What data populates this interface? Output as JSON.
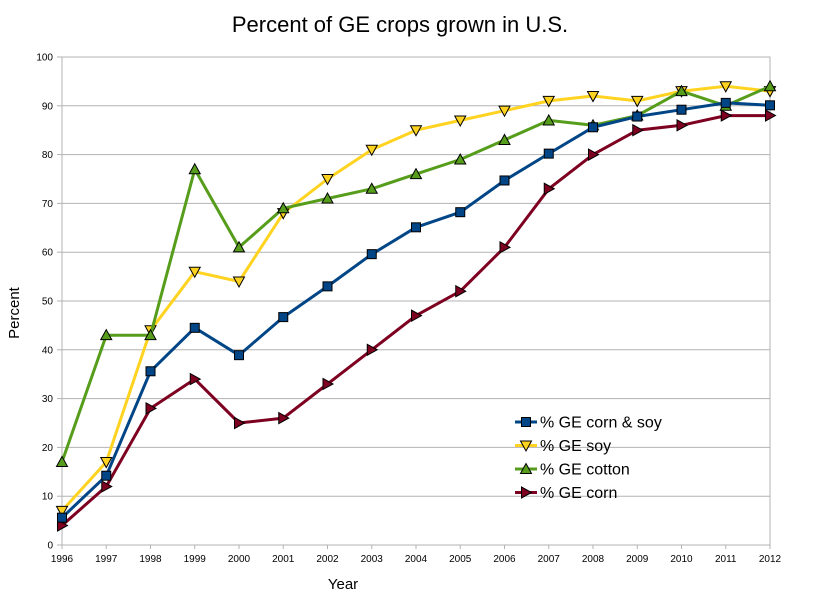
{
  "chart_data": {
    "type": "line",
    "title": "Percent of GE crops grown in U.S.",
    "xlabel": "Year",
    "ylabel": "Percent",
    "x": [
      "1996",
      "1997",
      "1998",
      "1999",
      "2000",
      "2001",
      "2002",
      "2003",
      "2004",
      "2005",
      "2006",
      "2007",
      "2008",
      "2009",
      "2010",
      "2011",
      "2012"
    ],
    "ylim": [
      0,
      100
    ],
    "yticks": [
      0,
      10,
      20,
      30,
      40,
      50,
      60,
      70,
      80,
      90,
      100
    ],
    "grid": "horizontal",
    "legend_position": "bottom-right",
    "series": [
      {
        "name": "% GE corn & soy",
        "color": "#004586",
        "marker": "square",
        "values": [
          5.6,
          14.2,
          35.6,
          44.5,
          38.9,
          46.7,
          53.0,
          59.6,
          65.1,
          68.2,
          74.7,
          80.2,
          85.6,
          87.8,
          89.2,
          90.6,
          90.1
        ]
      },
      {
        "name": "% GE soy",
        "color": "#ffd320",
        "marker": "triangle-down",
        "values": [
          7,
          17,
          44,
          56,
          54,
          68,
          75,
          81,
          85,
          87,
          89,
          91,
          92,
          91,
          93,
          94,
          93
        ]
      },
      {
        "name": "% GE cotton",
        "color": "#579d1c",
        "marker": "triangle-up",
        "values": [
          17,
          43,
          43,
          77,
          61,
          69,
          71,
          73,
          76,
          79,
          83,
          87,
          86,
          88,
          93,
          90,
          94
        ]
      },
      {
        "name": "% GE corn",
        "color": "#7e0021",
        "marker": "triangle-right",
        "values": [
          4,
          12,
          28,
          34,
          25,
          26,
          33,
          40,
          47,
          52,
          61,
          73,
          80,
          85,
          86,
          88,
          88
        ]
      }
    ]
  }
}
